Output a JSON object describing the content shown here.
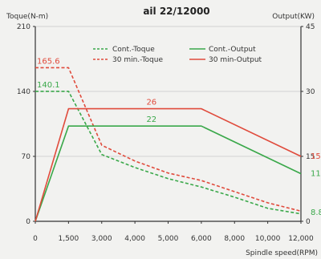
{
  "chart_data": {
    "type": "line",
    "title": "ail 22/12000",
    "xlabel": "Spindle speed(RPM)",
    "ylabel_left": "Toque(N-m)",
    "ylabel_right": "Output(KW)",
    "xlim": [
      0,
      12000
    ],
    "ylim_left": [
      0,
      210
    ],
    "ylim_right": [
      0,
      45
    ],
    "x_ticks": [
      0,
      1500,
      3000,
      4000,
      5000,
      6000,
      8000,
      10000,
      12000
    ],
    "x_tick_labels": [
      "0",
      "1,500",
      "3,000",
      "4,000",
      "5,000",
      "6,000",
      "8,000",
      "10,000",
      "12,000"
    ],
    "y_left_ticks": [
      0,
      70,
      140,
      210
    ],
    "y_right_ticks": [
      0,
      15,
      30,
      45
    ],
    "grid": "horizontal",
    "legend_position": "top-center",
    "series": [
      {
        "name": "Cont.-Toque",
        "axis": "left",
        "style": "dashed",
        "color": "#3aa84a",
        "points": [
          [
            0,
            140.1
          ],
          [
            1500,
            140.1
          ],
          [
            3000,
            72
          ],
          [
            4000,
            58
          ],
          [
            5000,
            46
          ],
          [
            6000,
            37
          ],
          [
            8000,
            26
          ],
          [
            10000,
            14
          ],
          [
            12000,
            8
          ]
        ],
        "labels": [
          {
            "x": 0,
            "y": 140.1,
            "text": "140.1"
          }
        ]
      },
      {
        "name": "30 min.-Toque",
        "axis": "left",
        "style": "dashed",
        "color": "#e04b3c",
        "points": [
          [
            0,
            165.6
          ],
          [
            1500,
            165.6
          ],
          [
            3000,
            82
          ],
          [
            4000,
            65
          ],
          [
            5000,
            52
          ],
          [
            6000,
            44
          ],
          [
            8000,
            32
          ],
          [
            10000,
            20
          ],
          [
            12000,
            11
          ]
        ],
        "labels": [
          {
            "x": 0,
            "y": 165.6,
            "text": "165.6"
          }
        ]
      },
      {
        "name": "Cont.-Output",
        "axis": "right",
        "style": "solid",
        "color": "#3aa84a",
        "points": [
          [
            0,
            0
          ],
          [
            1500,
            22
          ],
          [
            6000,
            22
          ],
          [
            12000,
            11
          ]
        ],
        "labels": [
          {
            "x": 4500,
            "y": 22,
            "text": "22"
          },
          {
            "x": 12000,
            "y": 11,
            "text": "11"
          },
          {
            "x": 12000,
            "y": 2,
            "text": "8.8"
          }
        ]
      },
      {
        "name": "30 min-Output",
        "axis": "right",
        "style": "solid",
        "color": "#e04b3c",
        "points": [
          [
            0,
            0
          ],
          [
            1500,
            26
          ],
          [
            6000,
            26
          ],
          [
            12000,
            15
          ]
        ],
        "labels": [
          {
            "x": 4500,
            "y": 26,
            "text": "26"
          },
          {
            "x": 12000,
            "y": 15,
            "text": "15"
          }
        ]
      }
    ]
  }
}
